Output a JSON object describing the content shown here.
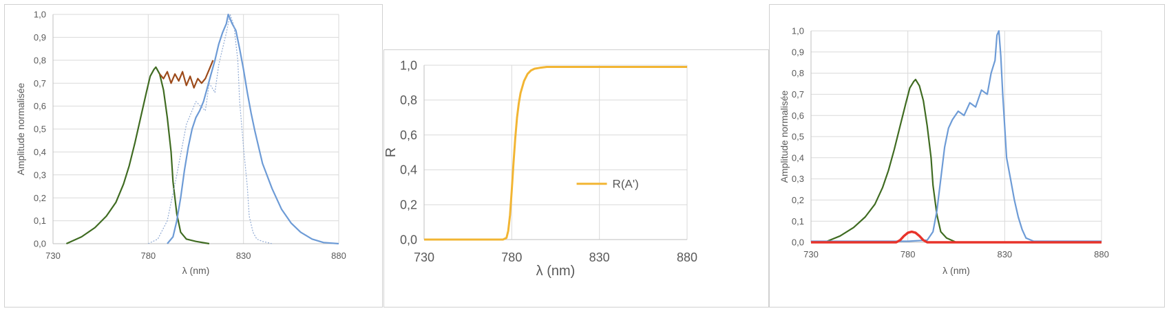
{
  "colors": {
    "grid": "#d9d9d9",
    "axis": "#bfbfbf",
    "green": "#3f6b21",
    "brown": "#9c4a1a",
    "blue": "#6d9bd6",
    "blue_dotted": "#8fa9d3",
    "orange": "#f2b533",
    "red": "#e8332a"
  },
  "chart_data": [
    {
      "type": "line",
      "xlabel": "λ (nm)",
      "ylabel": "Amplitude normalisée",
      "xlim": [
        730,
        880
      ],
      "ylim": [
        0,
        1
      ],
      "x_ticks": [
        "730",
        "780",
        "830",
        "880"
      ],
      "y_ticks": [
        "0,0",
        "0,1",
        "0,2",
        "0,3",
        "0,4",
        "0,5",
        "0,6",
        "0,7",
        "0,8",
        "0,9",
        "1,0"
      ],
      "grid": true,
      "series": [
        {
          "color_key": "green",
          "x": [
            737,
            745,
            752,
            758,
            763,
            767,
            770,
            773,
            776,
            779,
            781,
            783,
            784,
            786,
            788,
            790,
            792,
            793,
            795,
            797,
            800,
            805,
            812
          ],
          "y": [
            0.0,
            0.03,
            0.07,
            0.12,
            0.18,
            0.26,
            0.34,
            0.44,
            0.55,
            0.66,
            0.73,
            0.76,
            0.77,
            0.74,
            0.67,
            0.55,
            0.4,
            0.27,
            0.13,
            0.05,
            0.02,
            0.01,
            0.0
          ]
        },
        {
          "color_key": "brown",
          "x": [
            786,
            788,
            790,
            792,
            794,
            796,
            798,
            800,
            802,
            804,
            806,
            808,
            810,
            812,
            814
          ],
          "y": [
            0.74,
            0.72,
            0.75,
            0.7,
            0.74,
            0.71,
            0.75,
            0.69,
            0.73,
            0.68,
            0.72,
            0.7,
            0.72,
            0.76,
            0.8
          ]
        },
        {
          "color_key": "blue",
          "x": [
            790,
            793,
            795,
            797,
            799,
            801,
            803,
            805,
            807,
            809,
            811,
            813,
            815,
            817,
            819,
            821,
            822,
            824,
            826,
            828,
            830,
            832,
            834,
            836,
            838,
            840,
            845,
            850,
            855,
            860,
            866,
            872,
            880
          ],
          "y": [
            0.0,
            0.03,
            0.1,
            0.2,
            0.32,
            0.42,
            0.5,
            0.55,
            0.58,
            0.62,
            0.68,
            0.74,
            0.8,
            0.87,
            0.92,
            0.96,
            1.0,
            0.96,
            0.93,
            0.85,
            0.76,
            0.66,
            0.57,
            0.49,
            0.42,
            0.35,
            0.24,
            0.15,
            0.09,
            0.05,
            0.02,
            0.005,
            0.0
          ]
        },
        {
          "color_key": "blue_dotted",
          "dashed": true,
          "x": [
            780,
            785,
            790,
            795,
            800,
            805,
            810,
            812,
            815,
            817,
            819,
            821,
            823,
            825,
            827,
            828,
            830,
            832,
            833,
            835,
            837,
            840,
            845
          ],
          "y": [
            0.0,
            0.02,
            0.1,
            0.3,
            0.52,
            0.62,
            0.58,
            0.7,
            0.66,
            0.78,
            0.85,
            0.92,
            1.0,
            0.95,
            0.8,
            0.62,
            0.42,
            0.25,
            0.12,
            0.05,
            0.02,
            0.01,
            0.0
          ]
        }
      ]
    },
    {
      "type": "line",
      "xlabel": "λ (nm)",
      "ylabel": "R",
      "xlim": [
        730,
        880
      ],
      "ylim": [
        0,
        1
      ],
      "x_ticks": [
        "730",
        "780",
        "830",
        "880"
      ],
      "y_ticks": [
        "0,0",
        "0,2",
        "0,4",
        "0,6",
        "0,8",
        "1,0"
      ],
      "grid": true,
      "legend_placement": "middle-right",
      "series": [
        {
          "name": "R(A')",
          "color_key": "orange",
          "x": [
            730,
            775,
            777,
            778,
            779,
            780,
            781,
            782,
            783,
            784,
            785,
            787,
            789,
            791,
            793,
            796,
            800,
            805,
            880
          ],
          "y": [
            0.0,
            0.0,
            0.01,
            0.05,
            0.14,
            0.28,
            0.44,
            0.58,
            0.7,
            0.78,
            0.84,
            0.91,
            0.95,
            0.97,
            0.98,
            0.985,
            0.99,
            0.99,
            0.99
          ]
        }
      ]
    },
    {
      "type": "line",
      "xlabel": "λ (nm)",
      "ylabel": "Amplitude normalisée",
      "xlim": [
        730,
        880
      ],
      "ylim": [
        0,
        1
      ],
      "x_ticks": [
        "730",
        "780",
        "830",
        "880"
      ],
      "y_ticks": [
        "0,0",
        "0,1",
        "0,2",
        "0,3",
        "0,4",
        "0,5",
        "0,6",
        "0,7",
        "0,8",
        "0,9",
        "1,0"
      ],
      "grid": true,
      "series": [
        {
          "color_key": "green",
          "x": [
            737,
            745,
            752,
            758,
            763,
            767,
            770,
            773,
            776,
            779,
            781,
            783,
            784,
            786,
            788,
            790,
            792,
            793,
            795,
            797,
            800,
            805
          ],
          "y": [
            0.0,
            0.03,
            0.07,
            0.12,
            0.18,
            0.26,
            0.34,
            0.44,
            0.55,
            0.66,
            0.73,
            0.76,
            0.77,
            0.74,
            0.67,
            0.55,
            0.4,
            0.27,
            0.13,
            0.05,
            0.02,
            0.0
          ]
        },
        {
          "color_key": "blue",
          "x": [
            730,
            780,
            790,
            793,
            795,
            797,
            799,
            801,
            803,
            806,
            809,
            812,
            815,
            818,
            821,
            823,
            825,
            826,
            827,
            828,
            829,
            830,
            831,
            833,
            835,
            837,
            839,
            841,
            845,
            850,
            860,
            870,
            880
          ],
          "y": [
            0.005,
            0.005,
            0.01,
            0.05,
            0.15,
            0.3,
            0.45,
            0.54,
            0.58,
            0.62,
            0.6,
            0.66,
            0.64,
            0.72,
            0.7,
            0.8,
            0.86,
            0.98,
            1.0,
            0.88,
            0.7,
            0.55,
            0.4,
            0.3,
            0.2,
            0.12,
            0.06,
            0.02,
            0.005,
            0.005,
            0.005,
            0.005,
            0.005
          ]
        },
        {
          "color_key": "red",
          "x": [
            730,
            774,
            776,
            778,
            780,
            782,
            784,
            786,
            788,
            790,
            880
          ],
          "y": [
            0.0,
            0.0,
            0.01,
            0.03,
            0.045,
            0.05,
            0.045,
            0.03,
            0.01,
            0.0,
            0.0
          ]
        }
      ]
    }
  ]
}
